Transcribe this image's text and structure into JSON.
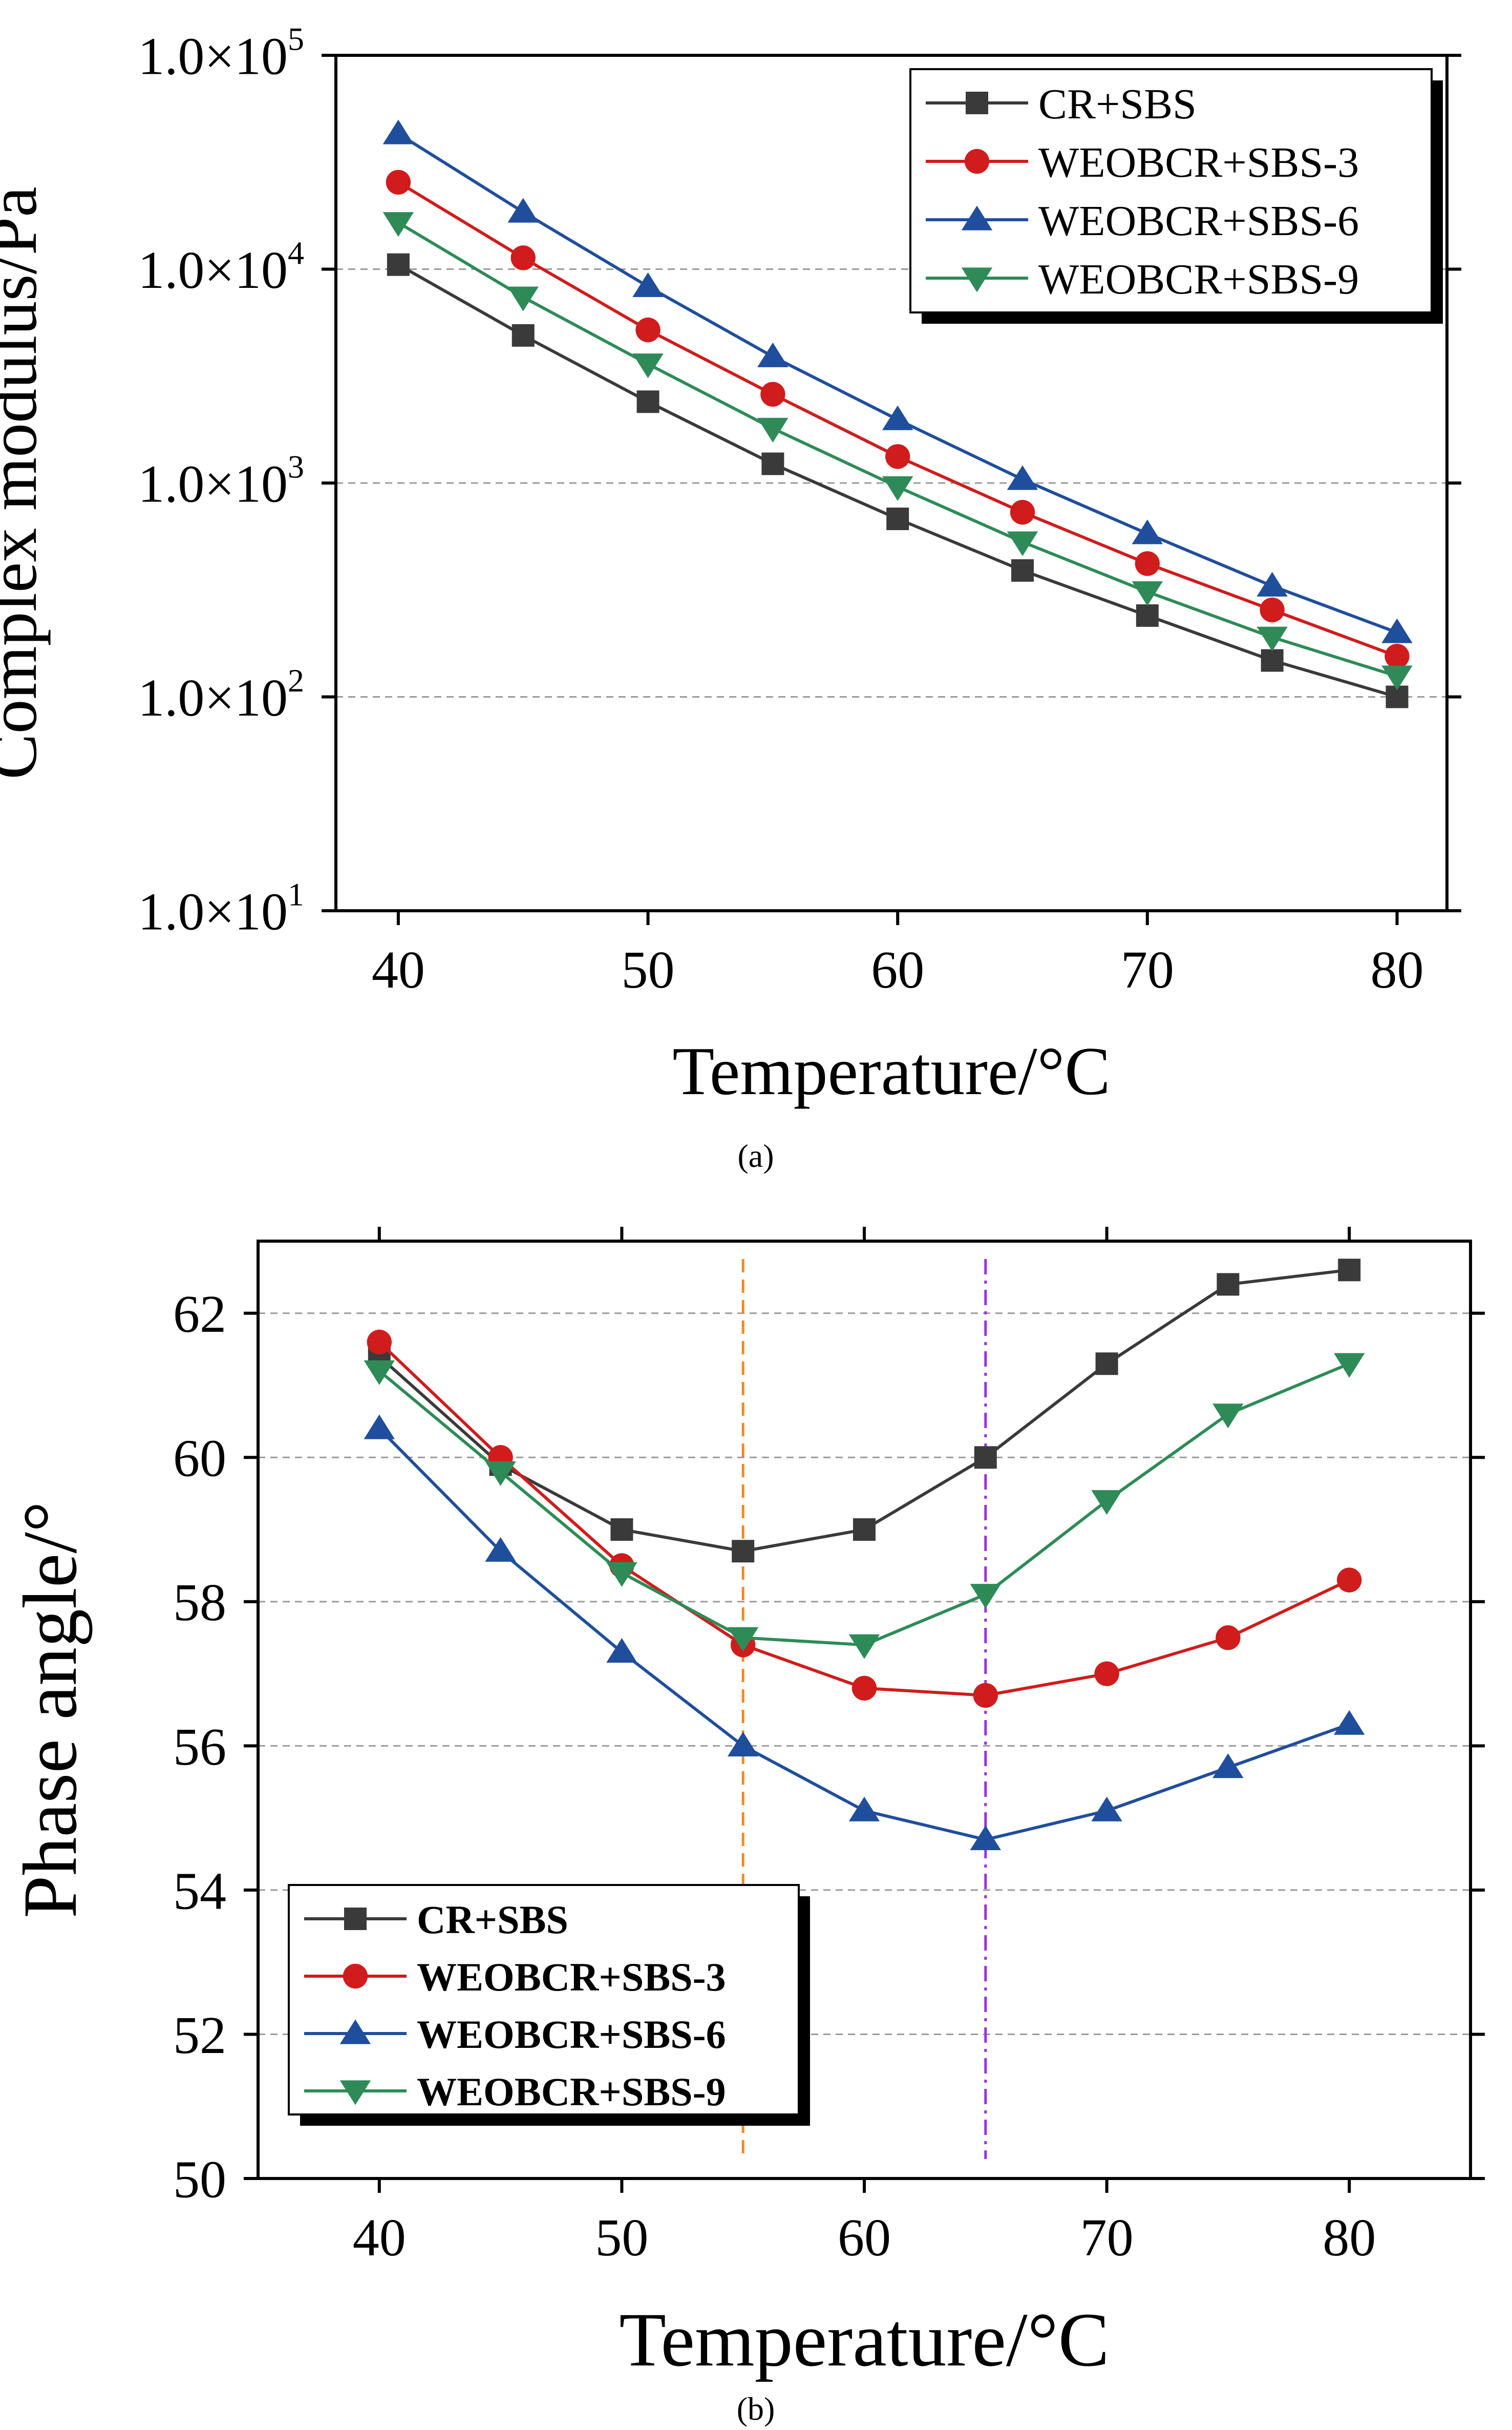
{
  "colors": {
    "cr_sbs": "#3a3a3a",
    "weobcr_3": "#d01c1c",
    "weobcr_6": "#1f4e9c",
    "weobcr_9": "#2e8b57",
    "ref_orange": "#f08a24",
    "ref_purple": "#9b30e0",
    "grid": "#9a9a9a"
  },
  "chart_data": [
    {
      "type": "line",
      "panel_label": "(a)",
      "xlabel": "Temperature/°C",
      "ylabel": "Complex modulus/Pa",
      "y_scale": "log",
      "xlim": [
        37.5,
        82
      ],
      "ylim": [
        10,
        100000
      ],
      "x_ticks": [
        40,
        50,
        60,
        70,
        80
      ],
      "y_ticks": [
        10,
        100,
        1000,
        10000,
        100000
      ],
      "y_tick_labels": [
        {
          "mant": "1.0×10",
          "exp": "1"
        },
        {
          "mant": "1.0×10",
          "exp": "2"
        },
        {
          "mant": "1.0×10",
          "exp": "3"
        },
        {
          "mant": "1.0×10",
          "exp": "4"
        },
        {
          "mant": "1.0×10",
          "exp": "5"
        }
      ],
      "grid": "horizontal dashed at 10^2, 10^3, 10^4",
      "legend_position": "top-right",
      "x": [
        40,
        45,
        50,
        55,
        60,
        65,
        70,
        75,
        80
      ],
      "series": [
        {
          "name": "CR+SBS",
          "marker": "square",
          "color_key": "cr_sbs",
          "values": [
            10500,
            4900,
            2400,
            1230,
            680,
            390,
            240,
            148,
            100
          ]
        },
        {
          "name": "WEOBCR+SBS-3",
          "marker": "circle",
          "color_key": "weobcr_3",
          "values": [
            25500,
            11300,
            5200,
            2600,
            1330,
            730,
            420,
            255,
            155
          ]
        },
        {
          "name": "WEOBCR+SBS-6",
          "marker": "triangle-up",
          "color_key": "weobcr_6",
          "values": [
            43000,
            18500,
            8300,
            3900,
            1980,
            1040,
            580,
            330,
            200
          ]
        },
        {
          "name": "WEOBCR+SBS-9",
          "marker": "triangle-down",
          "color_key": "weobcr_9",
          "values": [
            16500,
            7400,
            3600,
            1800,
            960,
            530,
            310,
            190,
            125
          ]
        }
      ]
    },
    {
      "type": "line",
      "panel_label": "(b)",
      "xlabel": "Temperature/°C",
      "ylabel": "Phase angle/°",
      "xlim": [
        35,
        85
      ],
      "ylim": [
        50,
        63
      ],
      "x_ticks": [
        40,
        50,
        60,
        70,
        80
      ],
      "y_ticks": [
        50,
        52,
        54,
        56,
        58,
        60,
        62
      ],
      "grid": "horizontal dashed at 52 to 62",
      "legend_position": "bottom-left",
      "reference_lines": [
        {
          "x": 55,
          "color_key": "ref_orange",
          "style": "dashed"
        },
        {
          "x": 65,
          "color_key": "ref_purple",
          "style": "dash-dot"
        }
      ],
      "x": [
        40,
        45,
        50,
        55,
        60,
        65,
        70,
        75,
        80
      ],
      "series": [
        {
          "name": "CR+SBS",
          "marker": "square",
          "color_key": "cr_sbs",
          "values": [
            61.4,
            59.9,
            59.0,
            58.7,
            59.0,
            60.0,
            61.3,
            62.4,
            62.6
          ]
        },
        {
          "name": "WEOBCR+SBS-3",
          "marker": "circle",
          "color_key": "weobcr_3",
          "values": [
            61.6,
            60.0,
            58.5,
            57.4,
            56.8,
            56.7,
            57.0,
            57.5,
            58.3
          ]
        },
        {
          "name": "WEOBCR+SBS-6",
          "marker": "triangle-up",
          "color_key": "weobcr_6",
          "values": [
            60.4,
            58.7,
            57.3,
            56.0,
            55.1,
            54.7,
            55.1,
            55.7,
            56.3
          ]
        },
        {
          "name": "WEOBCR+SBS-9",
          "marker": "triangle-down",
          "color_key": "weobcr_9",
          "values": [
            61.2,
            59.8,
            58.4,
            57.5,
            57.4,
            58.1,
            59.4,
            60.6,
            61.3
          ]
        }
      ]
    }
  ]
}
